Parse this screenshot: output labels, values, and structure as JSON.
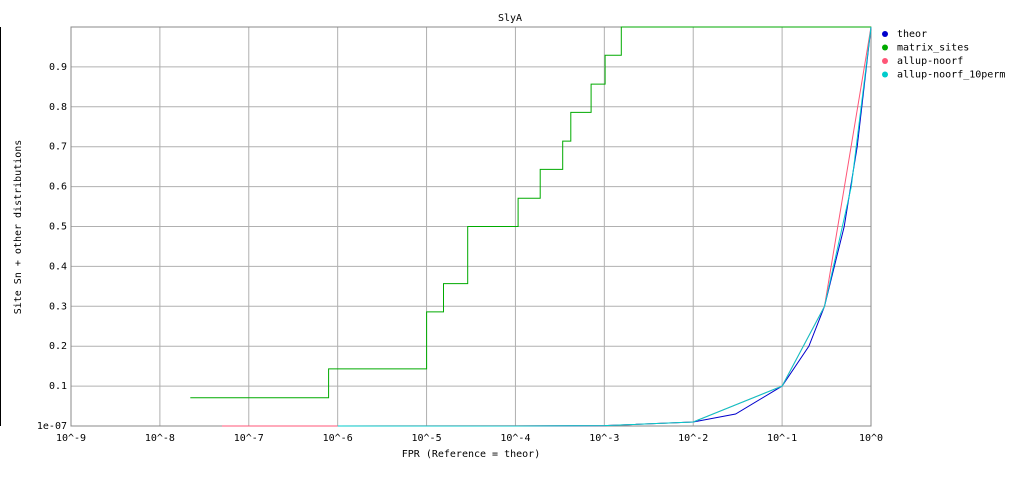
{
  "chart_data": {
    "type": "line",
    "title": "SlyA",
    "xlabel": "FPR (Reference = theor)",
    "ylabel": "Site Sn + other distributions",
    "xscale": "log",
    "xlim": [
      1e-09,
      1
    ],
    "xticks": [
      {
        "value": 1e-09,
        "label": "10^-9"
      },
      {
        "value": 1e-08,
        "label": "10^-8"
      },
      {
        "value": 1e-07,
        "label": "10^-7"
      },
      {
        "value": 1e-06,
        "label": "10^-6"
      },
      {
        "value": 1e-05,
        "label": "10^-5"
      },
      {
        "value": 0.0001,
        "label": "10^-4"
      },
      {
        "value": 0.001,
        "label": "10^-3"
      },
      {
        "value": 0.01,
        "label": "10^-2"
      },
      {
        "value": 0.1,
        "label": "10^-1"
      },
      {
        "value": 1,
        "label": "10^0"
      }
    ],
    "ylim": [
      1e-07,
      1
    ],
    "yticks": [
      {
        "value": 1e-07,
        "label": "1e-07"
      },
      0.1,
      0.2,
      0.3,
      0.4,
      0.5,
      0.6,
      0.7,
      0.8,
      0.9
    ],
    "grid": true,
    "legend": "right",
    "series": [
      {
        "name": "theor",
        "color": "#0000cc",
        "x": [
          1e-06,
          1e-05,
          0.0001,
          0.001,
          0.01,
          0.03,
          0.1,
          0.2,
          0.3,
          0.5,
          0.7,
          1
        ],
        "values": [
          1e-06,
          1e-05,
          0.0001,
          0.001,
          0.01,
          0.03,
          0.1,
          0.2,
          0.3,
          0.5,
          0.7,
          1
        ]
      },
      {
        "name": "matrix_sites",
        "color": "#00aa00",
        "x": [
          2.2e-08,
          7.9e-07,
          7.9e-07,
          1e-05,
          1e-05,
          1.55e-05,
          1.55e-05,
          2.9e-05,
          2.9e-05,
          0.000107,
          0.000107,
          0.00019,
          0.00019,
          0.00034,
          0.00034,
          0.00042,
          0.00042,
          0.00071,
          0.00071,
          0.00102,
          0.00102,
          0.00155,
          0.00155,
          1
        ],
        "values": [
          0.071,
          0.071,
          0.143,
          0.143,
          0.286,
          0.286,
          0.357,
          0.357,
          0.5,
          0.5,
          0.571,
          0.571,
          0.643,
          0.643,
          0.714,
          0.714,
          0.786,
          0.786,
          0.857,
          0.857,
          0.929,
          0.929,
          1,
          1
        ]
      },
      {
        "name": "allup-noorf",
        "color": "#ff5577",
        "x": [
          5e-08,
          1e-06,
          0.001,
          0.01,
          0.1,
          0.3,
          1
        ],
        "values": [
          1e-07,
          1e-06,
          0.001,
          0.01,
          0.1,
          0.3,
          1
        ]
      },
      {
        "name": "allup-noorf_10perm",
        "color": "#00cccc",
        "x": [
          1e-06,
          0.0001,
          0.001,
          0.01,
          0.1,
          0.3,
          0.6,
          1
        ],
        "values": [
          1e-06,
          0.0001,
          0.001,
          0.01,
          0.1,
          0.3,
          0.6,
          1
        ]
      }
    ]
  }
}
